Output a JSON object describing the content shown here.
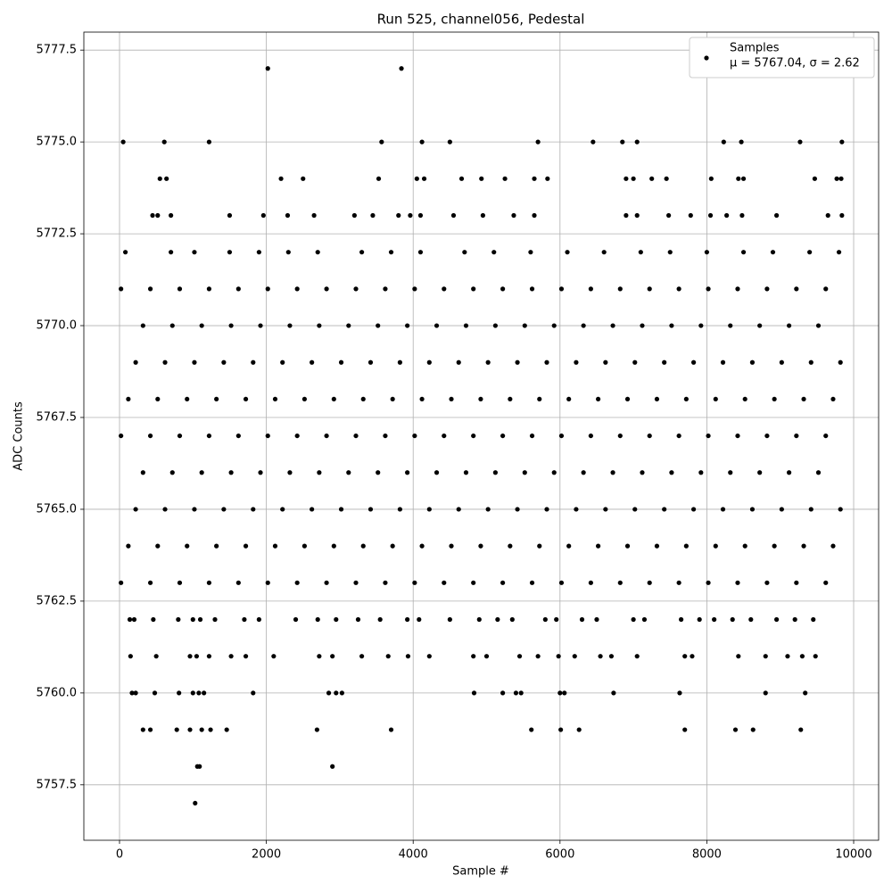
{
  "chart_data": {
    "type": "scatter",
    "title": "Run 525, channel056, Pedestal",
    "x_label": "Sample #",
    "y_label": "ADC Counts",
    "xlim": [
      -486,
      10340
    ],
    "ylim": [
      5755.99,
      5777.99
    ],
    "xticks": [
      0,
      2000,
      4000,
      6000,
      8000,
      10000
    ],
    "yticks": [
      5757.5,
      {
        "value": 5760,
        "label": "5760.0"
      },
      5762.5,
      {
        "value": 5765,
        "label": "5765.0"
      },
      5767.5,
      {
        "value": 5770,
        "label": "5770.0"
      },
      5772.5,
      {
        "value": 5775,
        "label": "5775.0"
      },
      5777.5
    ],
    "grid": true,
    "legend": "upper right",
    "legend_subtitle": "μ = 5767.04, σ = 2.62",
    "series": [
      {
        "name": "Samples",
        "color": "#000000",
        "x": [
          1030,
          1060,
          1090,
          2900,
          320,
          420,
          780,
          960,
          1120,
          1240,
          1460,
          2690,
          3700,
          5610,
          6010,
          6260,
          7700,
          8390,
          8630,
          9280,
          170,
          220,
          480,
          810,
          1000,
          1080,
          1150,
          1820,
          2850,
          2950,
          3030,
          4830,
          5220,
          5400,
          5470,
          6000,
          6060,
          6730,
          7630,
          8800,
          9340,
          150,
          500,
          960,
          1050,
          1220,
          1520,
          1720,
          2100,
          2720,
          2900,
          3300,
          3660,
          3930,
          4220,
          4820,
          5000,
          5450,
          5700,
          5980,
          6200,
          6550,
          6700,
          7050,
          7700,
          7800,
          8430,
          8800,
          9100,
          9300,
          9480,
          140,
          200,
          460,
          800,
          1000,
          1100,
          1300,
          1700,
          1900,
          2400,
          2700,
          2950,
          3250,
          3550,
          3920,
          4080,
          4500,
          4900,
          5150,
          5350,
          5800,
          5950,
          6300,
          6500,
          7000,
          7150,
          7650,
          7900,
          8100,
          8350,
          8600,
          8950,
          9200,
          9450,
          20,
          420,
          820,
          1220,
          1620,
          2020,
          2420,
          2820,
          3220,
          3620,
          4020,
          4420,
          4820,
          5220,
          5620,
          6020,
          6420,
          6820,
          7220,
          7620,
          8020,
          8420,
          8820,
          9220,
          9620,
          120,
          520,
          920,
          1320,
          1720,
          2120,
          2520,
          2920,
          3320,
          3720,
          4120,
          4520,
          4920,
          5320,
          5720,
          6120,
          6520,
          6920,
          7320,
          7720,
          8120,
          8520,
          8920,
          9320,
          9720,
          220,
          620,
          1020,
          1420,
          1820,
          2220,
          2620,
          3020,
          3420,
          3820,
          4220,
          4620,
          5020,
          5420,
          5820,
          6220,
          6620,
          7020,
          7420,
          7820,
          8220,
          8620,
          9020,
          9420,
          9820,
          320,
          720,
          1120,
          1520,
          1920,
          2320,
          2720,
          3120,
          3520,
          3920,
          4320,
          4720,
          5120,
          5520,
          5920,
          6320,
          6720,
          7120,
          7520,
          7920,
          8320,
          8720,
          9120,
          9520,
          20,
          420,
          820,
          1220,
          1620,
          2020,
          2420,
          2820,
          3220,
          3620,
          4020,
          4420,
          4820,
          5220,
          5620,
          6020,
          6420,
          6820,
          7220,
          7620,
          8020,
          8420,
          8820,
          9220,
          9620,
          120,
          520,
          920,
          1320,
          1720,
          2120,
          2520,
          2920,
          3320,
          3720,
          4120,
          4520,
          4920,
          5320,
          5720,
          6120,
          6520,
          6920,
          7320,
          7720,
          8120,
          8520,
          8920,
          9320,
          9720,
          220,
          620,
          1020,
          1420,
          1820,
          2220,
          2620,
          3020,
          3420,
          3820,
          4220,
          4620,
          5020,
          5420,
          5820,
          6220,
          6620,
          7020,
          7420,
          7820,
          8220,
          8620,
          9020,
          9420,
          9820,
          320,
          720,
          1120,
          1520,
          1920,
          2320,
          2720,
          3120,
          3520,
          3920,
          4320,
          4720,
          5120,
          5520,
          5920,
          6320,
          6720,
          7120,
          7520,
          7920,
          8320,
          8720,
          9120,
          9520,
          20,
          420,
          820,
          1220,
          1620,
          2020,
          2420,
          2820,
          3220,
          3620,
          4020,
          4420,
          4820,
          5220,
          5620,
          6020,
          6420,
          6820,
          7220,
          7620,
          8020,
          8420,
          8820,
          9220,
          9620,
          80,
          700,
          1020,
          1500,
          1900,
          2300,
          2700,
          3300,
          3700,
          4100,
          4700,
          5100,
          5600,
          6100,
          6600,
          7100,
          7500,
          8000,
          8500,
          8900,
          9400,
          9800,
          450,
          520,
          700,
          1500,
          1960,
          2290,
          2650,
          3200,
          3450,
          3800,
          3960,
          4100,
          4550,
          4950,
          5370,
          5650,
          6900,
          7050,
          7480,
          7780,
          8050,
          8270,
          8480,
          8950,
          9650,
          9840,
          550,
          640,
          2200,
          2500,
          3530,
          4050,
          4150,
          4660,
          4930,
          5250,
          5650,
          5830,
          6900,
          7000,
          7250,
          7450,
          8060,
          8430,
          8500,
          9470,
          9770,
          9830,
          50,
          610,
          1220,
          3570,
          4120,
          4500,
          5700,
          6450,
          6850,
          7050,
          8230,
          8470,
          9270,
          9840,
          2020,
          3840
        ],
        "values": [
          5757,
          5758,
          5758,
          5758,
          5759,
          5759,
          5759,
          5759,
          5759,
          5759,
          5759,
          5759,
          5759,
          5759,
          5759,
          5759,
          5759,
          5759,
          5759,
          5759,
          5760,
          5760,
          5760,
          5760,
          5760,
          5760,
          5760,
          5760,
          5760,
          5760,
          5760,
          5760,
          5760,
          5760,
          5760,
          5760,
          5760,
          5760,
          5760,
          5760,
          5760,
          5761,
          5761,
          5761,
          5761,
          5761,
          5761,
          5761,
          5761,
          5761,
          5761,
          5761,
          5761,
          5761,
          5761,
          5761,
          5761,
          5761,
          5761,
          5761,
          5761,
          5761,
          5761,
          5761,
          5761,
          5761,
          5761,
          5761,
          5761,
          5761,
          5761,
          5762,
          5762,
          5762,
          5762,
          5762,
          5762,
          5762,
          5762,
          5762,
          5762,
          5762,
          5762,
          5762,
          5762,
          5762,
          5762,
          5762,
          5762,
          5762,
          5762,
          5762,
          5762,
          5762,
          5762,
          5762,
          5762,
          5762,
          5762,
          5762,
          5762,
          5762,
          5762,
          5762,
          5762,
          5763,
          5763,
          5763,
          5763,
          5763,
          5763,
          5763,
          5763,
          5763,
          5763,
          5763,
          5763,
          5763,
          5763,
          5763,
          5763,
          5763,
          5763,
          5763,
          5763,
          5763,
          5763,
          5763,
          5763,
          5763,
          5764,
          5764,
          5764,
          5764,
          5764,
          5764,
          5764,
          5764,
          5764,
          5764,
          5764,
          5764,
          5764,
          5764,
          5764,
          5764,
          5764,
          5764,
          5764,
          5764,
          5764,
          5764,
          5764,
          5764,
          5764,
          5765,
          5765,
          5765,
          5765,
          5765,
          5765,
          5765,
          5765,
          5765,
          5765,
          5765,
          5765,
          5765,
          5765,
          5765,
          5765,
          5765,
          5765,
          5765,
          5765,
          5765,
          5765,
          5765,
          5765,
          5765,
          5766,
          5766,
          5766,
          5766,
          5766,
          5766,
          5766,
          5766,
          5766,
          5766,
          5766,
          5766,
          5766,
          5766,
          5766,
          5766,
          5766,
          5766,
          5766,
          5766,
          5766,
          5766,
          5766,
          5766,
          5767,
          5767,
          5767,
          5767,
          5767,
          5767,
          5767,
          5767,
          5767,
          5767,
          5767,
          5767,
          5767,
          5767,
          5767,
          5767,
          5767,
          5767,
          5767,
          5767,
          5767,
          5767,
          5767,
          5767,
          5767,
          5768,
          5768,
          5768,
          5768,
          5768,
          5768,
          5768,
          5768,
          5768,
          5768,
          5768,
          5768,
          5768,
          5768,
          5768,
          5768,
          5768,
          5768,
          5768,
          5768,
          5768,
          5768,
          5768,
          5768,
          5768,
          5769,
          5769,
          5769,
          5769,
          5769,
          5769,
          5769,
          5769,
          5769,
          5769,
          5769,
          5769,
          5769,
          5769,
          5769,
          5769,
          5769,
          5769,
          5769,
          5769,
          5769,
          5769,
          5769,
          5769,
          5769,
          5770,
          5770,
          5770,
          5770,
          5770,
          5770,
          5770,
          5770,
          5770,
          5770,
          5770,
          5770,
          5770,
          5770,
          5770,
          5770,
          5770,
          5770,
          5770,
          5770,
          5770,
          5770,
          5770,
          5770,
          5771,
          5771,
          5771,
          5771,
          5771,
          5771,
          5771,
          5771,
          5771,
          5771,
          5771,
          5771,
          5771,
          5771,
          5771,
          5771,
          5771,
          5771,
          5771,
          5771,
          5771,
          5771,
          5771,
          5771,
          5771,
          5772,
          5772,
          5772,
          5772,
          5772,
          5772,
          5772,
          5772,
          5772,
          5772,
          5772,
          5772,
          5772,
          5772,
          5772,
          5772,
          5772,
          5772,
          5772,
          5772,
          5772,
          5772,
          5773,
          5773,
          5773,
          5773,
          5773,
          5773,
          5773,
          5773,
          5773,
          5773,
          5773,
          5773,
          5773,
          5773,
          5773,
          5773,
          5773,
          5773,
          5773,
          5773,
          5773,
          5773,
          5773,
          5773,
          5773,
          5773,
          5774,
          5774,
          5774,
          5774,
          5774,
          5774,
          5774,
          5774,
          5774,
          5774,
          5774,
          5774,
          5774,
          5774,
          5774,
          5774,
          5774,
          5774,
          5774,
          5774,
          5774,
          5774,
          5775,
          5775,
          5775,
          5775,
          5775,
          5775,
          5775,
          5775,
          5775,
          5775,
          5775,
          5775,
          5775,
          5775,
          5777,
          5777
        ]
      }
    ]
  }
}
